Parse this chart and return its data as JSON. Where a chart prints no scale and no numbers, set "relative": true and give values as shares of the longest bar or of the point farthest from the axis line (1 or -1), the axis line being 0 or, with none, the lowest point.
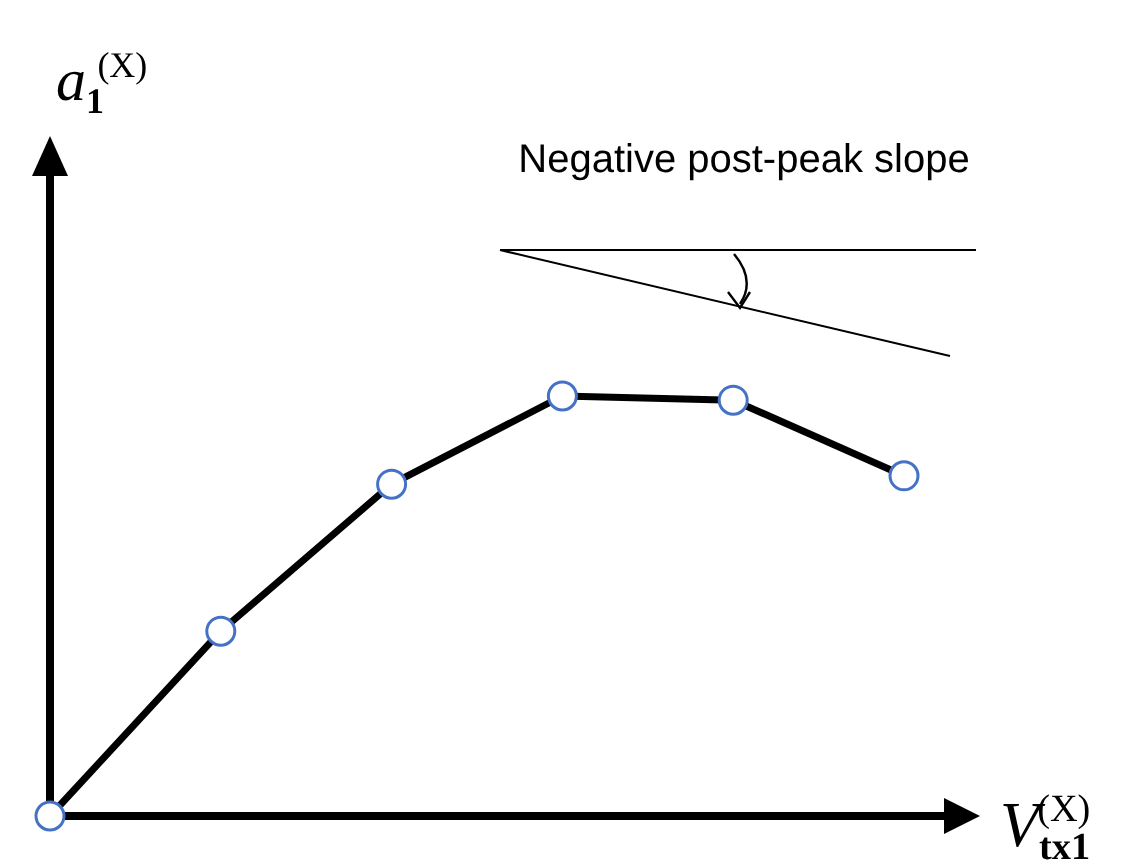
{
  "chart_data": {
    "type": "line",
    "relative": true,
    "xlabel": "V$_{tx1}$$^{(X)}$",
    "ylabel": "a$_{1}$$^{(X)}$",
    "categories": [
      null,
      null,
      null,
      null,
      null,
      null
    ],
    "marker": "circle",
    "series": [
      {
        "color": "#000000",
        "values": [
          0,
          0.44,
          0.79,
          1,
          0.99,
          0.81
        ]
      }
    ],
    "annotations": [
      "Negative post-peak slope"
    ]
  }
}
